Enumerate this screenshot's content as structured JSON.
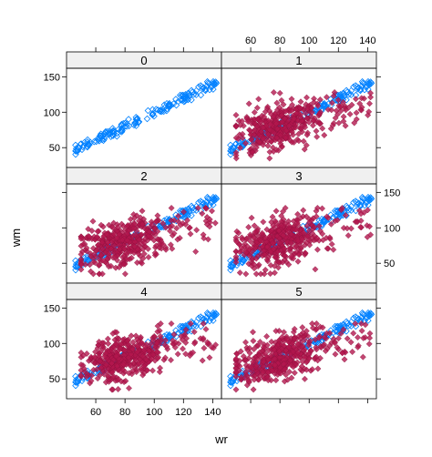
{
  "chart_data": {
    "type": "scatter",
    "layout": "lattice 2 columns x 3 rows",
    "xlabel": "wr",
    "ylabel": "wm",
    "xlim": [
      40,
      146
    ],
    "ylim": [
      22,
      162
    ],
    "x_ticks": [
      60,
      80,
      100,
      120,
      140
    ],
    "y_ticks": [
      50,
      100,
      150
    ],
    "grid": false,
    "colors": {
      "observed": "#0080ff",
      "imputed": "#b3164e",
      "strip_bg": "#f0f0f0",
      "frame": "#000000"
    },
    "observed_fit": {
      "slope": 1.0,
      "intercept": 0,
      "x_range": [
        46,
        143
      ]
    },
    "imputed_cloud": {
      "x_center": 78,
      "y_center": 80,
      "x_range": [
        50,
        142
      ],
      "y_range": [
        35,
        128
      ],
      "correlation": 0.45
    },
    "panels": [
      {
        "label": "0",
        "series": [
          {
            "role": "observed",
            "marker": "open-diamond"
          }
        ]
      },
      {
        "label": "1",
        "series": [
          {
            "role": "observed",
            "marker": "open-diamond"
          },
          {
            "role": "imputed",
            "marker": "filled-diamond"
          }
        ]
      },
      {
        "label": "2",
        "series": [
          {
            "role": "observed",
            "marker": "open-diamond"
          },
          {
            "role": "imputed",
            "marker": "filled-diamond"
          }
        ]
      },
      {
        "label": "3",
        "series": [
          {
            "role": "observed",
            "marker": "open-diamond"
          },
          {
            "role": "imputed",
            "marker": "filled-diamond"
          }
        ]
      },
      {
        "label": "4",
        "series": [
          {
            "role": "observed",
            "marker": "open-diamond"
          },
          {
            "role": "imputed",
            "marker": "filled-diamond"
          }
        ]
      },
      {
        "label": "5",
        "series": [
          {
            "role": "observed",
            "marker": "open-diamond"
          },
          {
            "role": "imputed",
            "marker": "filled-diamond"
          }
        ]
      }
    ]
  }
}
